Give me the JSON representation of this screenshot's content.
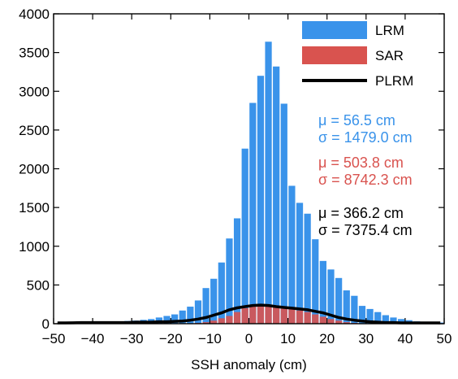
{
  "chart_data": {
    "type": "bar",
    "xlabel": "SSH anomaly (cm)",
    "ylabel": "",
    "xlim": [
      -50,
      50
    ],
    "ylim": [
      0,
      4000
    ],
    "x_ticks": [
      -50,
      -40,
      -30,
      -20,
      -10,
      0,
      10,
      20,
      30,
      40,
      50
    ],
    "y_ticks": [
      0,
      500,
      1000,
      1500,
      2000,
      2500,
      3000,
      3500,
      4000
    ],
    "bin_width": 2,
    "bin_centers": [
      -49,
      -47,
      -45,
      -43,
      -41,
      -39,
      -37,
      -35,
      -33,
      -31,
      -29,
      -27,
      -25,
      -23,
      -21,
      -19,
      -17,
      -15,
      -13,
      -11,
      -9,
      -7,
      -5,
      -3,
      -1,
      1,
      3,
      5,
      7,
      9,
      11,
      13,
      15,
      17,
      19,
      21,
      23,
      25,
      27,
      29,
      31,
      33,
      35,
      37,
      39,
      41,
      43,
      45,
      47,
      49
    ],
    "series": [
      {
        "name": "LRM",
        "type": "bar",
        "color": "#3a93ea",
        "values": [
          5,
          5,
          5,
          5,
          10,
          15,
          20,
          25,
          30,
          35,
          40,
          50,
          60,
          80,
          100,
          120,
          170,
          220,
          300,
          460,
          580,
          790,
          1100,
          1360,
          2260,
          2850,
          3200,
          3640,
          3320,
          2840,
          1780,
          1560,
          1420,
          1090,
          810,
          700,
          590,
          430,
          360,
          230,
          190,
          150,
          110,
          80,
          60,
          45,
          30,
          25,
          20,
          15
        ]
      },
      {
        "name": "SAR",
        "type": "bar",
        "color": "#d9534f",
        "values": [
          0,
          0,
          0,
          0,
          0,
          0,
          0,
          0,
          0,
          0,
          0,
          0,
          0,
          0,
          0,
          0,
          0,
          5,
          10,
          20,
          40,
          70,
          100,
          150,
          200,
          230,
          240,
          230,
          210,
          200,
          190,
          170,
          150,
          120,
          90,
          60,
          40,
          20,
          10,
          5,
          0,
          0,
          0,
          0,
          0,
          0,
          0,
          0,
          0,
          0
        ]
      },
      {
        "name": "PLRM",
        "type": "line",
        "color": "#000000",
        "values": [
          10,
          10,
          12,
          15,
          15,
          15,
          15,
          15,
          15,
          15,
          20,
          20,
          20,
          25,
          25,
          30,
          35,
          45,
          60,
          80,
          110,
          140,
          180,
          205,
          220,
          235,
          240,
          235,
          220,
          210,
          200,
          190,
          180,
          160,
          140,
          110,
          80,
          60,
          45,
          35,
          25,
          20,
          15,
          15,
          10,
          10,
          10,
          10,
          10,
          10
        ]
      }
    ],
    "legend": {
      "placement": "top-right",
      "entries": [
        {
          "label": "LRM",
          "kind": "bar",
          "color": "#3a93ea"
        },
        {
          "label": "SAR",
          "kind": "bar",
          "color": "#d9534f"
        },
        {
          "label": "PLRM",
          "kind": "line",
          "color": "#000000"
        }
      ]
    },
    "annotations": [
      {
        "mu": "μ = 56.5 cm",
        "sigma": "σ = 1479.0 cm",
        "color": "#3a93ea"
      },
      {
        "mu": "μ = 503.8 cm",
        "sigma": "σ = 8742.3 cm",
        "color": "#d9534f"
      },
      {
        "mu": "μ = 366.2 cm",
        "sigma": "σ = 7375.4 cm",
        "color": "#000000"
      }
    ],
    "grid": false
  }
}
